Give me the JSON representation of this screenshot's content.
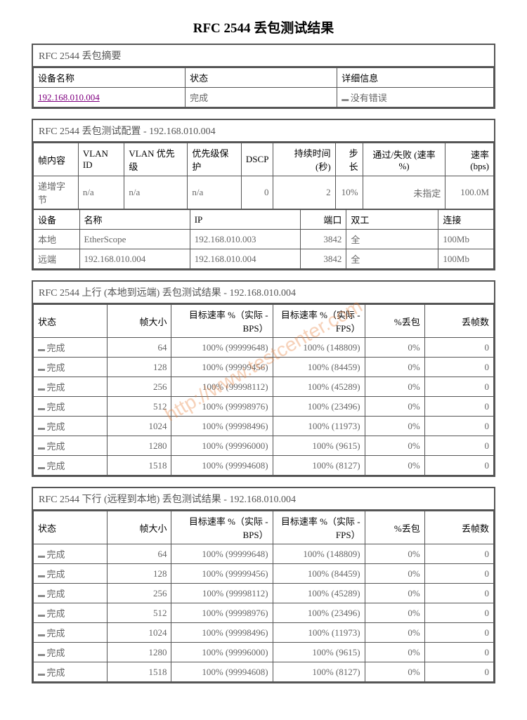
{
  "title": "RFC 2544 丢包测试结果",
  "watermark": "http://www.testcenter.com",
  "summary": {
    "header": "RFC 2544 丢包摘要",
    "cols": [
      "设备名称",
      "状态",
      "详细信息"
    ],
    "device": "192.168.010.004",
    "status": "完成",
    "detail": "没有错误"
  },
  "config": {
    "header": "RFC 2544 丢包测试配置  - 192.168.010.004",
    "cols": [
      "帧内容",
      "VLAN ID",
      "VLAN 优先级",
      "优先级保护",
      "DSCP",
      "持续时间 (秒)",
      "步长",
      "通过/失败 (速率 %)",
      "速率 (bps)"
    ],
    "row": [
      "递增字节",
      "n/a",
      "n/a",
      "n/a",
      "0",
      "2",
      "10%",
      "未指定",
      "100.0M"
    ]
  },
  "devices": {
    "cols": [
      "设备",
      "名称",
      "IP",
      "端口",
      "双工",
      "连接"
    ],
    "rows": [
      [
        "本地",
        "EtherScope",
        "192.168.010.003",
        "3842",
        "全",
        "100Mb"
      ],
      [
        "远端",
        "192.168.010.004",
        "192.168.010.004",
        "3842",
        "全",
        "100Mb"
      ]
    ]
  },
  "up": {
    "header": "RFC 2544 上行 (本地到远端) 丢包测试结果  - 192.168.010.004",
    "cols": [
      "状态",
      "帧大小",
      "目标速率 %（实际 - BPS）",
      "目标速率 %（实际 - FPS）",
      "%丢包",
      "丢帧数"
    ],
    "rows": [
      [
        "完成",
        "64",
        "100% (99999648)",
        "100% (148809)",
        "0%",
        "0"
      ],
      [
        "完成",
        "128",
        "100% (99999456)",
        "100% (84459)",
        "0%",
        "0"
      ],
      [
        "完成",
        "256",
        "100% (99998112)",
        "100% (45289)",
        "0%",
        "0"
      ],
      [
        "完成",
        "512",
        "100% (99998976)",
        "100% (23496)",
        "0%",
        "0"
      ],
      [
        "完成",
        "1024",
        "100% (99998496)",
        "100% (11973)",
        "0%",
        "0"
      ],
      [
        "完成",
        "1280",
        "100% (99996000)",
        "100% (9615)",
        "0%",
        "0"
      ],
      [
        "完成",
        "1518",
        "100% (99994608)",
        "100% (8127)",
        "0%",
        "0"
      ]
    ]
  },
  "down": {
    "header": "RFC 2544 下行 (远程到本地) 丢包测试结果  - 192.168.010.004",
    "cols": [
      "状态",
      "帧大小",
      "目标速率 %（实际 - BPS）",
      "目标速率 %（实际 - FPS）",
      "%丢包",
      "丢帧数"
    ],
    "rows": [
      [
        "完成",
        "64",
        "100% (99999648)",
        "100% (148809)",
        "0%",
        "0"
      ],
      [
        "完成",
        "128",
        "100% (99999456)",
        "100% (84459)",
        "0%",
        "0"
      ],
      [
        "完成",
        "256",
        "100% (99998112)",
        "100% (45289)",
        "0%",
        "0"
      ],
      [
        "完成",
        "512",
        "100% (99998976)",
        "100% (23496)",
        "0%",
        "0"
      ],
      [
        "完成",
        "1024",
        "100% (99998496)",
        "100% (11973)",
        "0%",
        "0"
      ],
      [
        "完成",
        "1280",
        "100% (99996000)",
        "100% (9615)",
        "0%",
        "0"
      ],
      [
        "完成",
        "1518",
        "100% (99994608)",
        "100% (8127)",
        "0%",
        "0"
      ]
    ]
  }
}
